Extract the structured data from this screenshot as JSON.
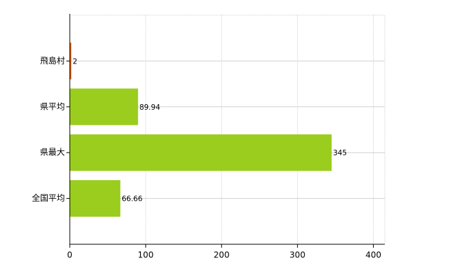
{
  "chart_data": {
    "type": "bar",
    "orientation": "horizontal",
    "categories": [
      "飛島村",
      "県平均",
      "県最大",
      "全国平均"
    ],
    "values": [
      2,
      89.94,
      345,
      66.66
    ],
    "colors": [
      "#e05a00",
      "#9acd1e",
      "#9acd1e",
      "#9acd1e"
    ],
    "xlim": [
      0,
      415
    ],
    "xticks": [
      0,
      100,
      200,
      300,
      400
    ],
    "grid": true
  }
}
